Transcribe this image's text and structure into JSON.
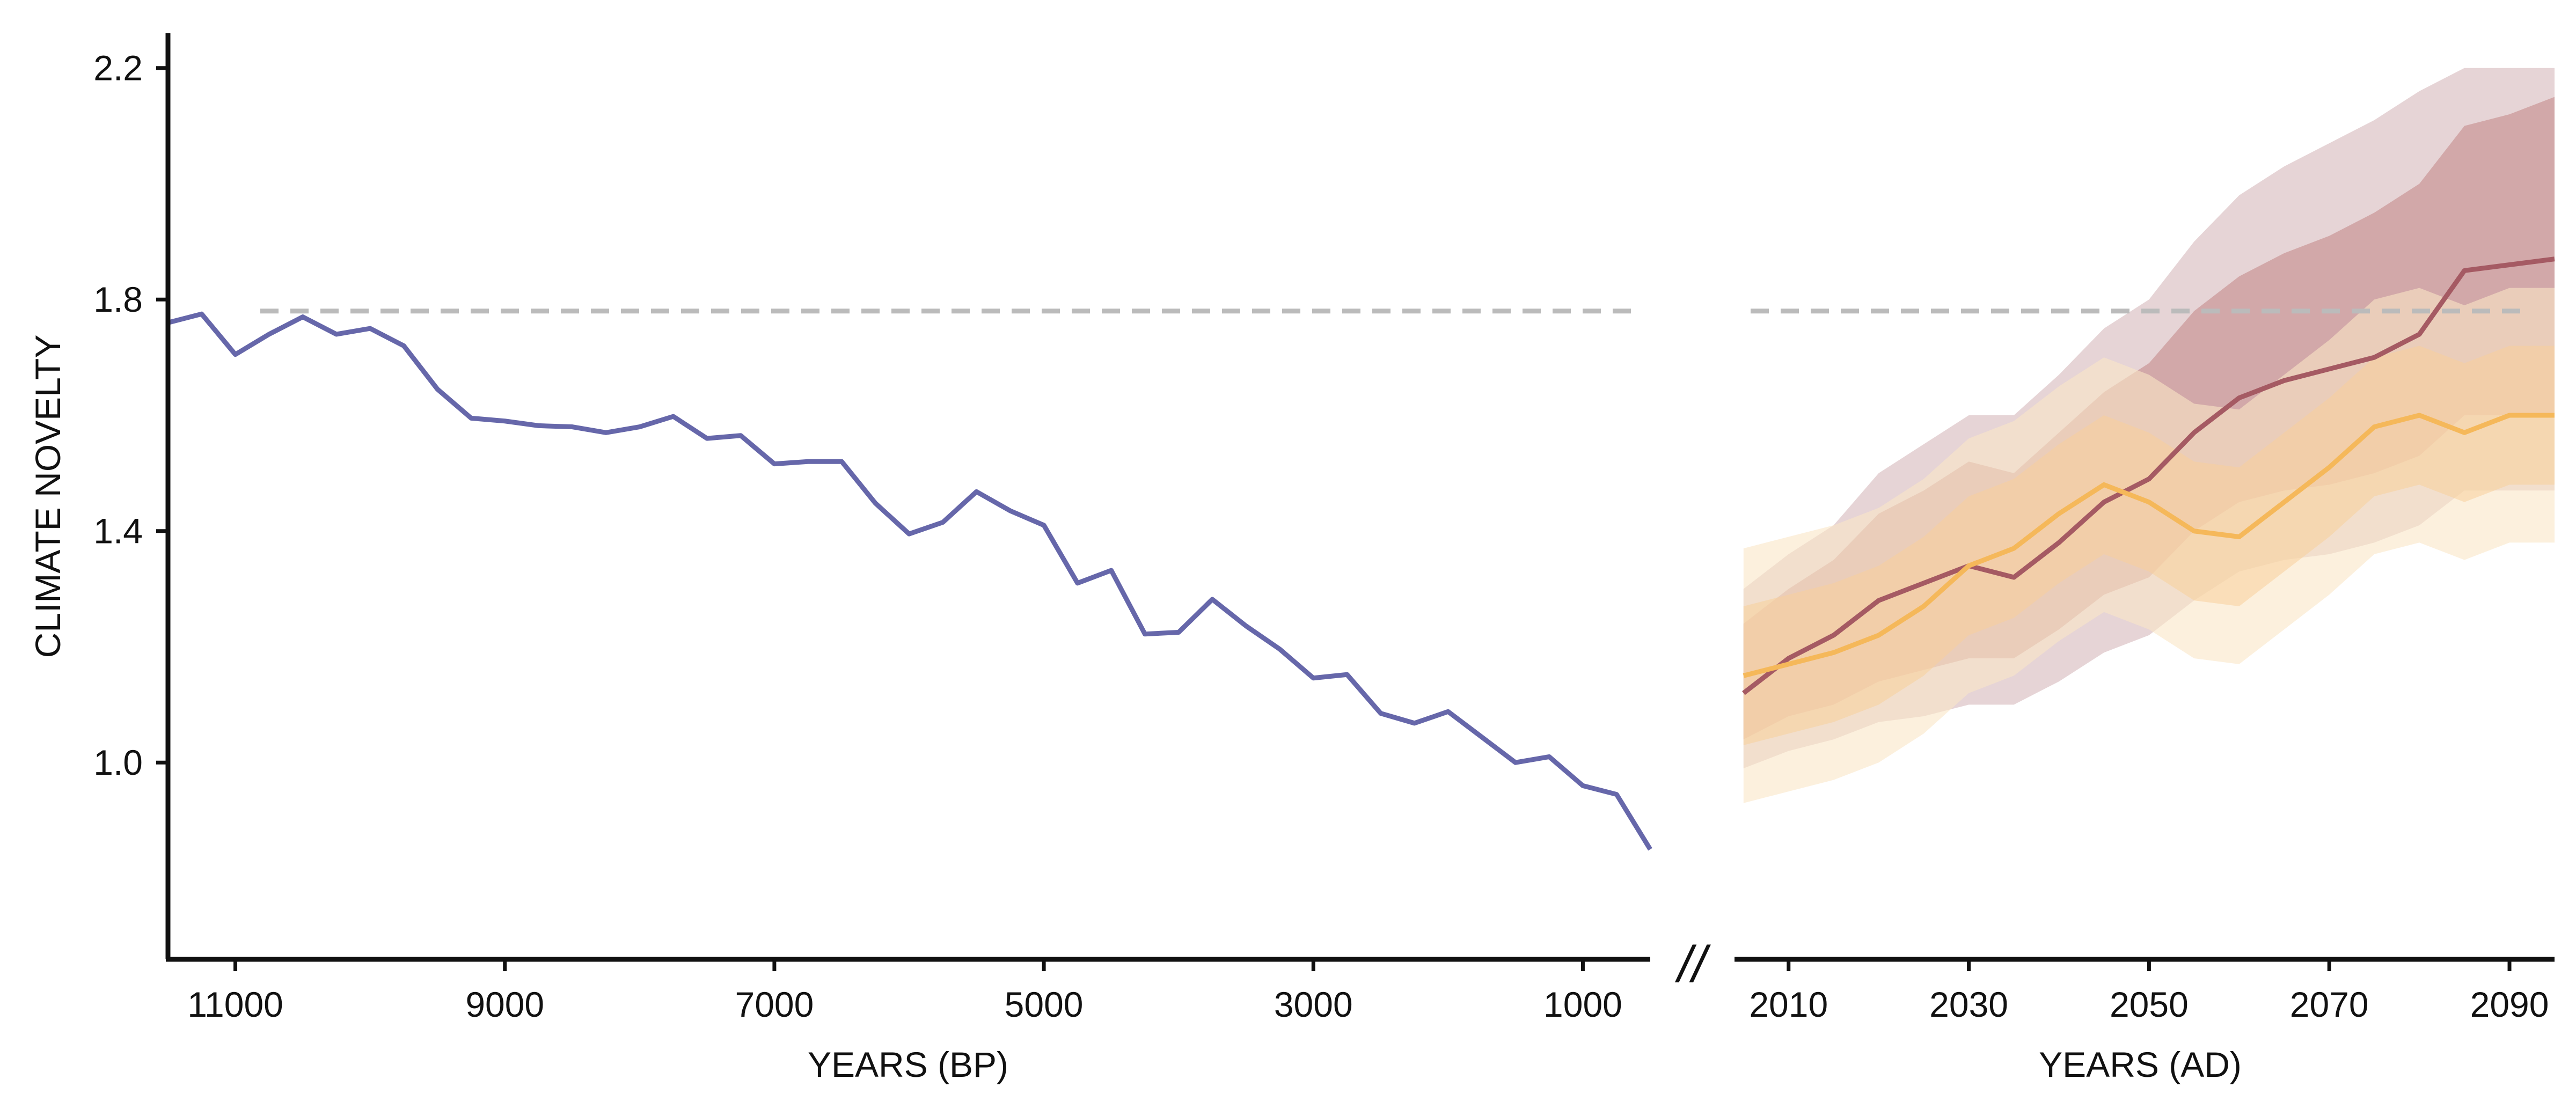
{
  "chart_data": {
    "type": "line",
    "ylabel": "CLIMATE NOVELTY",
    "yticks": [
      "1.0",
      "1.4",
      "1.8",
      "2.2"
    ],
    "yticks_values": [
      1.0,
      1.4,
      1.8,
      2.2
    ],
    "ylim": [
      0.66,
      2.26
    ],
    "reference_line": {
      "y": 1.78,
      "style": "dashed",
      "color": "#bbbbbb"
    },
    "break_marker": "//",
    "panels": [
      {
        "xlabel": "YEARS (BP)",
        "xlim": [
          11500,
          500
        ],
        "xticks": [
          "11000",
          "9000",
          "7000",
          "5000",
          "3000",
          "1000"
        ],
        "xticks_values": [
          11000,
          9000,
          7000,
          5000,
          3000,
          1000
        ],
        "series": [
          {
            "color": "#6667aa",
            "x": [
              11500,
              11250,
              11000,
              10750,
              10500,
              10250,
              10000,
              9750,
              9500,
              9250,
              9000,
              8750,
              8500,
              8250,
              8000,
              7750,
              7500,
              7250,
              7000,
              6750,
              6500,
              6250,
              6000,
              5750,
              5500,
              5250,
              5000,
              4750,
              4500,
              4250,
              4000,
              3750,
              3500,
              3250,
              3000,
              2750,
              2500,
              2250,
              2000,
              1750,
              1500,
              1250,
              1000,
              750,
              500
            ],
            "y": [
              1.76,
              1.775,
              1.705,
              1.74,
              1.77,
              1.74,
              1.75,
              1.72,
              1.645,
              1.595,
              1.59,
              1.582,
              1.58,
              1.57,
              1.58,
              1.598,
              1.56,
              1.565,
              1.516,
              1.52,
              1.52,
              1.448,
              1.395,
              1.415,
              1.468,
              1.435,
              1.41,
              1.31,
              1.332,
              1.222,
              1.225,
              1.282,
              1.236,
              1.196,
              1.146,
              1.152,
              1.085,
              1.068,
              1.088,
              1.044,
              1.0,
              1.01,
              0.96,
              0.945,
              0.85
            ]
          }
        ]
      },
      {
        "xlabel": "YEARS (AD)",
        "xlim": [
          2004,
          2095
        ],
        "xticks": [
          "2010",
          "2030",
          "2050",
          "2070",
          "2090"
        ],
        "xticks_values": [
          2010,
          2030,
          2050,
          2070,
          2090
        ],
        "series": [
          {
            "color": "#a55a63",
            "band_inner_color": "#c99595",
            "band_outer_color": "#ddc5c8",
            "x": [
              2005,
              2010,
              2015,
              2020,
              2025,
              2030,
              2035,
              2040,
              2045,
              2050,
              2055,
              2060,
              2065,
              2070,
              2075,
              2080,
              2085,
              2090,
              2095
            ],
            "y": [
              1.12,
              1.18,
              1.22,
              1.28,
              1.31,
              1.34,
              1.32,
              1.38,
              1.45,
              1.49,
              1.57,
              1.63,
              1.66,
              1.68,
              1.7,
              1.74,
              1.85,
              1.86,
              1.87
            ],
            "band_inner": [
              [
                1.04,
                1.24
              ],
              [
                1.08,
                1.3
              ],
              [
                1.1,
                1.35
              ],
              [
                1.14,
                1.43
              ],
              [
                1.16,
                1.47
              ],
              [
                1.18,
                1.52
              ],
              [
                1.18,
                1.5
              ],
              [
                1.23,
                1.57
              ],
              [
                1.29,
                1.64
              ],
              [
                1.32,
                1.69
              ],
              [
                1.4,
                1.78
              ],
              [
                1.45,
                1.84
              ],
              [
                1.47,
                1.88
              ],
              [
                1.48,
                1.91
              ],
              [
                1.5,
                1.95
              ],
              [
                1.53,
                2.0
              ],
              [
                1.6,
                2.1
              ],
              [
                1.6,
                2.12
              ],
              [
                1.6,
                2.15
              ]
            ],
            "band_outer": [
              [
                0.99,
                1.3
              ],
              [
                1.02,
                1.36
              ],
              [
                1.04,
                1.41
              ],
              [
                1.07,
                1.5
              ],
              [
                1.08,
                1.55
              ],
              [
                1.1,
                1.6
              ],
              [
                1.1,
                1.6
              ],
              [
                1.14,
                1.67
              ],
              [
                1.19,
                1.75
              ],
              [
                1.22,
                1.8
              ],
              [
                1.28,
                1.9
              ],
              [
                1.33,
                1.98
              ],
              [
                1.35,
                2.03
              ],
              [
                1.36,
                2.07
              ],
              [
                1.38,
                2.11
              ],
              [
                1.41,
                2.16
              ],
              [
                1.47,
                2.2
              ],
              [
                1.47,
                2.2
              ],
              [
                1.47,
                2.2
              ]
            ]
          },
          {
            "color": "#f5b85a",
            "band_inner_color": "#f8cf9a",
            "band_outer_color": "#fae6c6",
            "x": [
              2005,
              2010,
              2015,
              2020,
              2025,
              2030,
              2035,
              2040,
              2045,
              2050,
              2055,
              2060,
              2065,
              2070,
              2075,
              2080,
              2085,
              2090,
              2095
            ],
            "y": [
              1.15,
              1.17,
              1.19,
              1.22,
              1.27,
              1.34,
              1.37,
              1.43,
              1.48,
              1.45,
              1.4,
              1.39,
              1.45,
              1.51,
              1.58,
              1.6,
              1.57,
              1.6,
              1.6
            ]
          }
        ]
      }
    ]
  }
}
